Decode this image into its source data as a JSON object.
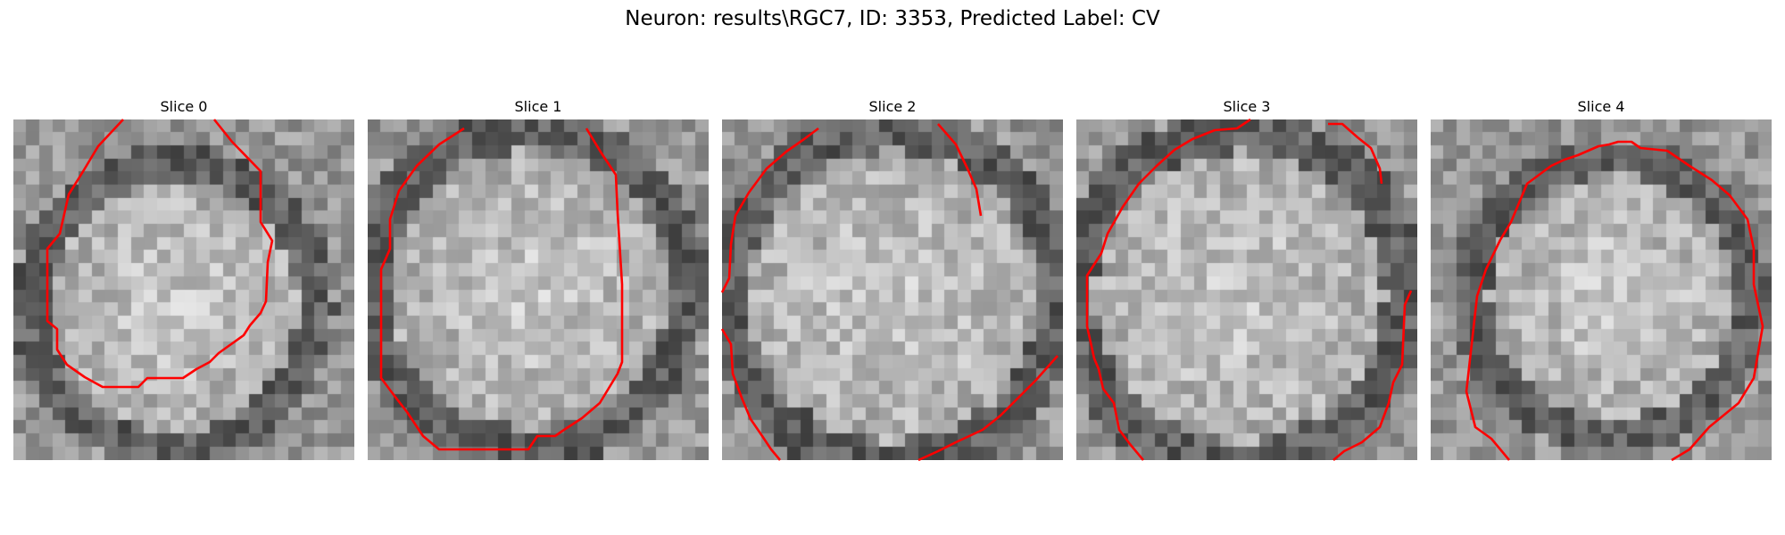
{
  "figure": {
    "title": "Neuron: results\\RGC7, ID: 3353, Predicted Label: CV"
  },
  "slices": [
    {
      "title": "Slice 0",
      "contour_color": "#ff0000"
    },
    {
      "title": "Slice 1",
      "contour_color": "#ff0000"
    },
    {
      "title": "Slice 2",
      "contour_color": "#ff0000"
    },
    {
      "title": "Slice 3",
      "contour_color": "#ff0000"
    },
    {
      "title": "Slice 4",
      "contour_color": "#ff0000"
    }
  ],
  "colormap": "grayscale"
}
